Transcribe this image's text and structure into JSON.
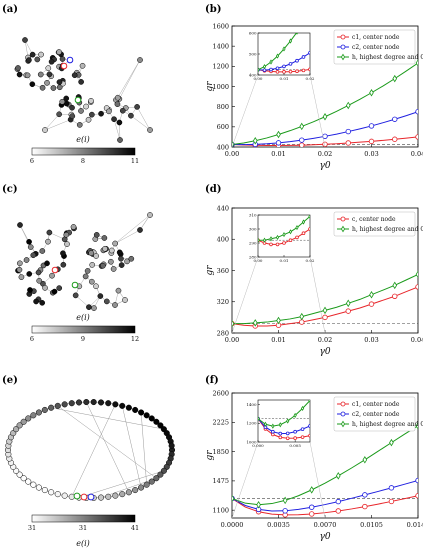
{
  "panel_labels": [
    "(a)",
    "(b)",
    "(c)",
    "(d)",
    "(e)",
    "(f)"
  ],
  "colors": {
    "red": "#e8262b",
    "blue": "#1f1fe0",
    "green": "#1a9a1a",
    "baseline": "#444444",
    "node_dark": "#222222",
    "node_light": "#ffffff"
  },
  "networks": [
    {
      "id": "a",
      "colorbar": {
        "ticks": [
          "6",
          "8",
          "11"
        ],
        "label": "e(i)"
      }
    },
    {
      "id": "c",
      "colorbar": {
        "ticks": [
          "6",
          "9",
          "12"
        ],
        "label": "e(i)"
      }
    },
    {
      "id": "e",
      "colorbar": {
        "ticks": [
          "31",
          "31",
          "41"
        ],
        "label": "e(i)"
      }
    }
  ],
  "chart_data": [
    {
      "id": "b",
      "type": "line",
      "xlabel": "γ0",
      "ylabel": "gr",
      "xlim": [
        0,
        0.04
      ],
      "ylim": [
        400,
        1600
      ],
      "xticks": [
        0.0,
        0.01,
        0.02,
        0.03,
        0.04
      ],
      "xtick_labels": [
        "0.00",
        "0.01",
        "0.02",
        "0.03",
        "0.04"
      ],
      "yticks": [
        400,
        600,
        800,
        1000,
        1200,
        1400,
        1600
      ],
      "yticks_labels": [
        "400",
        "600",
        "800",
        "1000",
        "1200",
        "1400",
        "1600"
      ],
      "baseline": 425,
      "legend": "top-right",
      "series": [
        {
          "name": "c1, center node",
          "color_key": "red",
          "marker": "circle",
          "x": [
            0.0,
            0.0025,
            0.005,
            0.0075,
            0.01,
            0.0125,
            0.015,
            0.0175,
            0.02,
            0.0225,
            0.025,
            0.0275,
            0.03,
            0.0325,
            0.035,
            0.0375,
            0.04
          ],
          "values": [
            425,
            420,
            417,
            415,
            415,
            416,
            418,
            422,
            427,
            432,
            440,
            448,
            456,
            466,
            477,
            488,
            500
          ]
        },
        {
          "name": "c2, center node",
          "color_key": "blue",
          "marker": "circle",
          "x": [
            0.0,
            0.0025,
            0.005,
            0.0075,
            0.01,
            0.0125,
            0.015,
            0.0175,
            0.02,
            0.0225,
            0.025,
            0.0275,
            0.03,
            0.0325,
            0.035,
            0.0375,
            0.04
          ],
          "values": [
            425,
            423,
            426,
            432,
            441,
            453,
            468,
            486,
            506,
            528,
            553,
            580,
            609,
            641,
            675,
            711,
            750
          ]
        },
        {
          "name": "h, highest degree and Cc",
          "color_key": "green",
          "marker": "diamond",
          "x": [
            0.0,
            0.0025,
            0.005,
            0.0075,
            0.01,
            0.0125,
            0.015,
            0.0175,
            0.02,
            0.0225,
            0.025,
            0.0275,
            0.03,
            0.0325,
            0.035,
            0.0375,
            0.04
          ],
          "values": [
            425,
            440,
            462,
            490,
            524,
            562,
            604,
            650,
            700,
            754,
            812,
            873,
            938,
            1006,
            1078,
            1154,
            1233
          ]
        }
      ],
      "inset": {
        "xlim": [
          0,
          0.02
        ],
        "ylim": [
          400,
          600
        ],
        "xticks": [
          0.0,
          0.01,
          0.02
        ],
        "xtick_labels": [
          "0.00",
          "0.01",
          "0.02"
        ],
        "yticks": [
          400,
          500,
          600
        ],
        "ytick_labels": [
          "400",
          "500",
          "600"
        ]
      }
    },
    {
      "id": "d",
      "type": "line",
      "xlabel": "γ0",
      "ylabel": "gr",
      "xlim": [
        0,
        0.04
      ],
      "ylim": [
        280,
        440
      ],
      "xticks": [
        0.0,
        0.01,
        0.02,
        0.03,
        0.04
      ],
      "xtick_labels": [
        "0.00",
        "0.01",
        "0.02",
        "0.03",
        "0.04"
      ],
      "yticks": [
        280,
        320,
        360,
        400,
        440
      ],
      "yticks_labels": [
        "280",
        "320",
        "360",
        "400",
        "440"
      ],
      "baseline": 292,
      "legend": "top-right",
      "series": [
        {
          "name": "c, center node",
          "color_key": "red",
          "marker": "circle",
          "x": [
            0.0,
            0.0025,
            0.005,
            0.0075,
            0.01,
            0.0125,
            0.015,
            0.0175,
            0.02,
            0.0225,
            0.025,
            0.0275,
            0.03,
            0.0325,
            0.035,
            0.0375,
            0.04
          ],
          "values": [
            292,
            290,
            289,
            289,
            290,
            292,
            294,
            297,
            300,
            304,
            308,
            312,
            317,
            322,
            327,
            333,
            339
          ]
        },
        {
          "name": "h, highest degree and Cc",
          "color_key": "green",
          "marker": "diamond",
          "x": [
            0.0,
            0.0025,
            0.005,
            0.0075,
            0.01,
            0.0125,
            0.015,
            0.0175,
            0.02,
            0.0225,
            0.025,
            0.0275,
            0.03,
            0.0325,
            0.035,
            0.0375,
            0.04
          ],
          "values": [
            292,
            292,
            293,
            294,
            296,
            298,
            301,
            305,
            309,
            313,
            318,
            323,
            329,
            335,
            341,
            348,
            355
          ]
        }
      ],
      "inset": {
        "xlim": [
          0,
          0.02
        ],
        "ylim": [
          280,
          310
        ],
        "xticks": [
          0.0,
          0.01,
          0.02
        ],
        "xtick_labels": [
          "0.00",
          "0.01",
          "0.02"
        ],
        "yticks": [
          280,
          290,
          300,
          310
        ],
        "ytick_labels": [
          "280",
          "290",
          "300",
          "310"
        ]
      }
    },
    {
      "id": "f",
      "type": "line",
      "xlabel": "γ0",
      "ylabel": "gr",
      "xlim": [
        0,
        0.014
      ],
      "ylim": [
        1000,
        2600
      ],
      "xticks": [
        0.0,
        0.0035,
        0.007,
        0.0105,
        0.014
      ],
      "xtick_labels": [
        "0.0000",
        "0.0035",
        "0.0070",
        "0.0105",
        "0.0140"
      ],
      "yticks": [
        1100,
        1475,
        1850,
        2225,
        2600
      ],
      "yticks_labels": [
        "1100",
        "1475",
        "1850",
        "2225",
        "2600"
      ],
      "baseline": 1250,
      "legend": "top-right",
      "series": [
        {
          "name": "c1, center node",
          "color_key": "red",
          "marker": "circle",
          "x": [
            0.0,
            0.001,
            0.002,
            0.003,
            0.004,
            0.005,
            0.006,
            0.007,
            0.008,
            0.009,
            0.01,
            0.011,
            0.012,
            0.013,
            0.014
          ],
          "values": [
            1250,
            1140,
            1080,
            1050,
            1040,
            1042,
            1052,
            1068,
            1090,
            1116,
            1146,
            1178,
            1212,
            1248,
            1285
          ]
        },
        {
          "name": "c2, center node",
          "color_key": "blue",
          "marker": "circle",
          "x": [
            0.0,
            0.001,
            0.002,
            0.003,
            0.004,
            0.005,
            0.006,
            0.007,
            0.008,
            0.009,
            0.01,
            0.011,
            0.012,
            0.013,
            0.014
          ],
          "values": [
            1250,
            1160,
            1110,
            1090,
            1092,
            1110,
            1138,
            1172,
            1210,
            1252,
            1296,
            1340,
            1386,
            1433,
            1480
          ]
        },
        {
          "name": "h, highest degree and Cc",
          "color_key": "green",
          "marker": "diamond",
          "x": [
            0.0,
            0.001,
            0.002,
            0.003,
            0.004,
            0.005,
            0.006,
            0.007,
            0.008,
            0.009,
            0.01,
            0.011,
            0.012,
            0.013,
            0.014
          ],
          "values": [
            1250,
            1190,
            1170,
            1185,
            1225,
            1285,
            1360,
            1445,
            1540,
            1640,
            1745,
            1855,
            1965,
            2075,
            2180
          ]
        }
      ],
      "inset": {
        "xlim": [
          0,
          0.007
        ],
        "ylim": [
          1000,
          1450
        ],
        "xticks": [
          0.0,
          0.005
        ],
        "xtick_labels": [
          "0.000",
          "0.005"
        ],
        "yticks": [
          1000,
          1200,
          1400
        ],
        "ytick_labels": [
          "1000",
          "1200",
          "1400"
        ]
      }
    }
  ]
}
